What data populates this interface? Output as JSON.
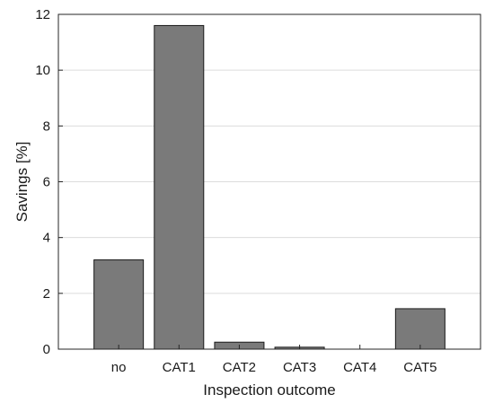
{
  "chart_data": {
    "type": "bar",
    "categories": [
      "no",
      "CAT1",
      "CAT2",
      "CAT3",
      "CAT4",
      "CAT5"
    ],
    "values": [
      3.2,
      11.6,
      0.25,
      0.07,
      0,
      1.45
    ],
    "xlabel": "Inspection outcome",
    "ylabel": "Savings [%]",
    "ylim": [
      0,
      12
    ],
    "yticks": [
      0,
      2,
      4,
      6,
      8,
      10,
      12
    ],
    "grid": "horizontal",
    "bar_color": "#7a7a7a",
    "bar_edge_color": "#1a1a1a"
  }
}
